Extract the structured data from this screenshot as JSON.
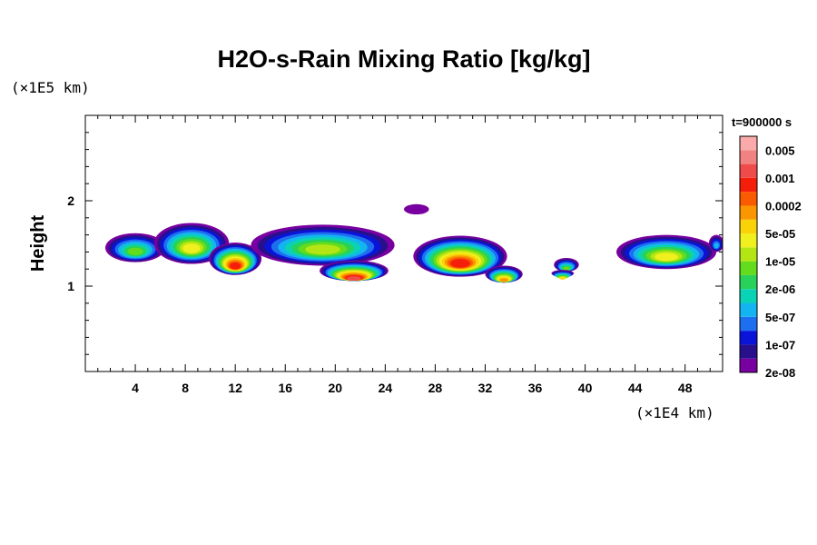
{
  "chart_data": {
    "type": "heatmap",
    "title": "H2O-s-Rain Mixing Ratio [kg/kg]",
    "ylabel": "Height",
    "xunit": "(×1E4 km)",
    "yunit": "(×1E5 km)",
    "time_label": "t=900000 s",
    "xlim": [
      0,
      51
    ],
    "ylim": [
      0,
      3
    ],
    "x_ticks": [
      4,
      8,
      12,
      16,
      20,
      24,
      28,
      32,
      36,
      40,
      44,
      48
    ],
    "x_tick_labels": [
      "4",
      "8",
      "12",
      "16",
      "20",
      "24",
      "28",
      "32",
      "36",
      "40",
      "44",
      "48"
    ],
    "y_ticks": [
      1,
      2
    ],
    "y_tick_labels": [
      "1",
      "2"
    ],
    "colorbar": {
      "levels": [
        "0.005",
        "0.001",
        "0.0002",
        "5e-05",
        "1e-05",
        "2e-06",
        "5e-07",
        "1e-07",
        "2e-08"
      ],
      "colors": [
        "#7800a0",
        "#28108c",
        "#0a14d8",
        "#1e6ef0",
        "#14b4f0",
        "#0ad2b4",
        "#28d25a",
        "#64dc1e",
        "#b4e614",
        "#f0f01e",
        "#fad208",
        "#fa9600",
        "#fa5a00",
        "#f51e0a",
        "#f04b4b",
        "#f08282",
        "#faaaaa"
      ]
    },
    "clouds": [
      {
        "x": 4.0,
        "y": 1.45,
        "w": 4.8,
        "h": 0.34,
        "peak": 8
      },
      {
        "x": 8.5,
        "y": 1.5,
        "w": 6.0,
        "h": 0.48,
        "peak": 10
      },
      {
        "x": 12.0,
        "y": 1.32,
        "w": 4.2,
        "h": 0.38,
        "peak": 14
      },
      {
        "x": 19.0,
        "y": 1.48,
        "w": 11.5,
        "h": 0.48,
        "peak": 9
      },
      {
        "x": 21.5,
        "y": 1.18,
        "w": 5.5,
        "h": 0.24,
        "peak": 15
      },
      {
        "x": 26.5,
        "y": 1.9,
        "w": 2.0,
        "h": 0.12,
        "peak": 1
      },
      {
        "x": 30.0,
        "y": 1.35,
        "w": 7.5,
        "h": 0.48,
        "peak": 14
      },
      {
        "x": 33.5,
        "y": 1.14,
        "w": 3.0,
        "h": 0.2,
        "peak": 12
      },
      {
        "x": 38.5,
        "y": 1.25,
        "w": 2.0,
        "h": 0.16,
        "peak": 8
      },
      {
        "x": 38.2,
        "y": 1.15,
        "w": 1.8,
        "h": 0.08,
        "peak": 11
      },
      {
        "x": 46.5,
        "y": 1.4,
        "w": 8.0,
        "h": 0.4,
        "peak": 10
      },
      {
        "x": 50.5,
        "y": 1.5,
        "w": 1.2,
        "h": 0.2,
        "peak": 5
      }
    ]
  }
}
